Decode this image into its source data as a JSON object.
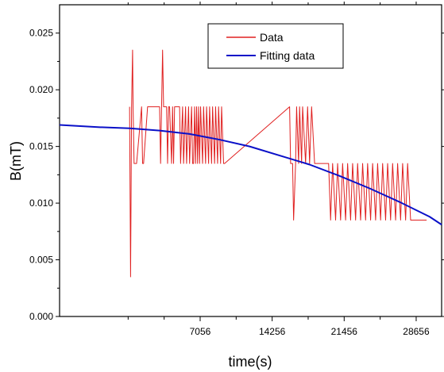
{
  "chart_data": {
    "type": "line",
    "title": "",
    "xlabel": "time(s)",
    "ylabel": "B(mT)",
    "xlim": [
      -7000,
      31200
    ],
    "ylim": [
      0.0,
      0.0275
    ],
    "x_ticks": [
      7056,
      14256,
      21456,
      28656
    ],
    "x_tick_labels": [
      "7056",
      "14256",
      "21456",
      "28656"
    ],
    "x_minor_ticks": [
      -144,
      3456,
      10656,
      17856,
      25056
    ],
    "y_ticks": [
      0.0,
      0.005,
      0.01,
      0.015,
      0.02,
      0.025
    ],
    "y_tick_labels": [
      "0.000",
      "0.005",
      "0.010",
      "0.015",
      "0.020",
      "0.025"
    ],
    "grid": false,
    "legend_position": "top-right",
    "series": [
      {
        "name": "Data",
        "color": "#e02020",
        "style": "step",
        "x": [
          0,
          100,
          200,
          300,
          350,
          450,
          520,
          700,
          1200,
          1300,
          1400,
          1800,
          1900,
          2000,
          2100,
          2200,
          2300,
          2500,
          3000,
          3100,
          3300,
          3400,
          3700,
          3800,
          3900,
          4000,
          4200,
          4300,
          4400,
          4500,
          5000,
          5100,
          5300,
          5400,
          5600,
          5700,
          5900,
          6000,
          6200,
          6300,
          6400,
          6500,
          6600,
          6700,
          6800,
          6900,
          7000,
          7100,
          7300,
          7400,
          7600,
          7700,
          7900,
          8000,
          8200,
          8300,
          8500,
          8600,
          8800,
          8900,
          9100,
          9200,
          9400,
          9500,
          16000,
          16100,
          16300,
          16400,
          16600,
          16700,
          16900,
          17000,
          17200,
          17300,
          17600,
          17800,
          18000,
          18200,
          18500,
          18700,
          18900,
          19100,
          19700,
          19900,
          20100,
          20300,
          20600,
          20800,
          21100,
          21300,
          21600,
          21800,
          22100,
          22300,
          22600,
          22800,
          23100,
          23300,
          23600,
          23800,
          24100,
          24300,
          24600,
          24800,
          25100,
          25300,
          25600,
          25800,
          26100,
          26300,
          26600,
          26800,
          27100,
          27300,
          27600,
          27800,
          28100,
          28300,
          29700
        ],
        "y": [
          0.0185,
          0.0035,
          0.0185,
          0.0235,
          0.0185,
          0.0135,
          0.0135,
          0.0135,
          0.0185,
          0.0135,
          0.0135,
          0.0185,
          0.0185,
          0.0185,
          0.0185,
          0.0185,
          0.0185,
          0.0185,
          0.0185,
          0.0135,
          0.0235,
          0.0185,
          0.0185,
          0.0135,
          0.0185,
          0.0185,
          0.0135,
          0.0185,
          0.0135,
          0.0185,
          0.0185,
          0.0135,
          0.0185,
          0.0135,
          0.0185,
          0.0135,
          0.0185,
          0.0135,
          0.0185,
          0.0135,
          0.0135,
          0.0185,
          0.0135,
          0.0185,
          0.0135,
          0.0185,
          0.0135,
          0.0185,
          0.0135,
          0.0185,
          0.0135,
          0.0185,
          0.0135,
          0.0185,
          0.0135,
          0.0185,
          0.0135,
          0.0185,
          0.0135,
          0.0185,
          0.0135,
          0.0185,
          0.0135,
          0.0135,
          0.0185,
          0.0135,
          0.0135,
          0.0085,
          0.0135,
          0.0185,
          0.0135,
          0.0185,
          0.0135,
          0.0185,
          0.0135,
          0.0185,
          0.0135,
          0.0185,
          0.0135,
          0.0135,
          0.0135,
          0.0135,
          0.0135,
          0.0135,
          0.0085,
          0.0135,
          0.0085,
          0.0135,
          0.0085,
          0.0135,
          0.0085,
          0.0135,
          0.0085,
          0.0135,
          0.0085,
          0.0135,
          0.0085,
          0.0135,
          0.0085,
          0.0135,
          0.0085,
          0.0135,
          0.0085,
          0.0135,
          0.0085,
          0.0135,
          0.0085,
          0.0135,
          0.0085,
          0.0135,
          0.0085,
          0.0135,
          0.0085,
          0.0135,
          0.0085,
          0.0135,
          0.0085,
          0.0085,
          0.0085
        ]
      },
      {
        "name": "Fitting data",
        "color": "#0a10c8",
        "style": "line",
        "x": [
          -7000,
          -3000,
          0,
          3000,
          6000,
          9000,
          12000,
          15000,
          18000,
          21000,
          24000,
          27000,
          30000,
          31200
        ],
        "y": [
          0.0169,
          0.0167,
          0.0166,
          0.0164,
          0.0161,
          0.0156,
          0.015,
          0.0142,
          0.0134,
          0.0124,
          0.0113,
          0.0101,
          0.0088,
          0.0081
        ]
      }
    ]
  }
}
